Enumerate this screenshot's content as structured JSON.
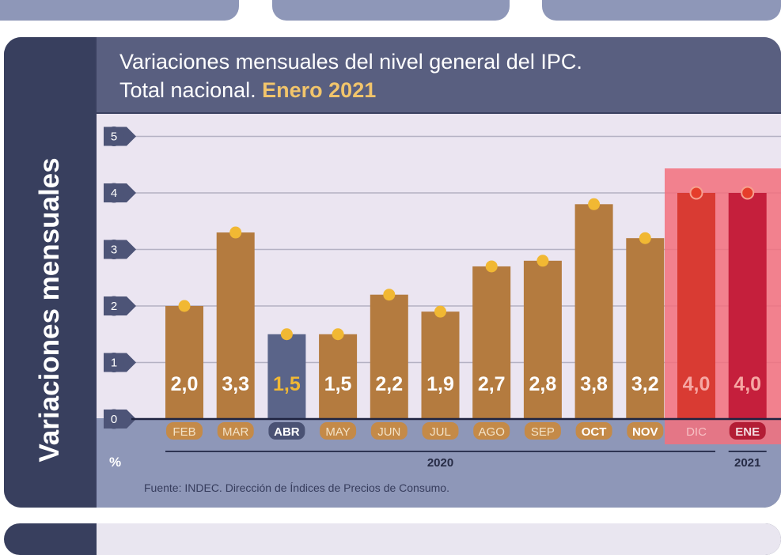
{
  "side_label": "Variaciones mensuales",
  "title_line1": "Variaciones mensuales del nivel general del IPC.",
  "title_line2_prefix": "Total nacional.",
  "title_line2_accent": "Enero 2021",
  "unit_label": "%",
  "source": "Fuente: INDEC. Dirección de Índices de Precios de Consumo.",
  "colors": {
    "bar": "#b47b3f",
    "bar_highlight_april": "#5a6489",
    "bar_dec": "#d93b33",
    "bar_jan": "#c51f3c",
    "dot": "#f1b833",
    "dot_recent": "#e63d2b",
    "highlight_band": "#f3707c",
    "label_highlight": "#f1b833",
    "label_recent": "#f6a7a3"
  },
  "chart_data": {
    "type": "bar",
    "title": "Variaciones mensuales del nivel general del IPC. Total nacional. Enero 2021",
    "categories": [
      "FEB",
      "MAR",
      "ABR",
      "MAY",
      "JUN",
      "JUL",
      "AGO",
      "SEP",
      "OCT",
      "NOV",
      "DIC",
      "ENE"
    ],
    "values": [
      2.0,
      3.3,
      1.5,
      1.5,
      2.2,
      1.9,
      2.7,
      2.8,
      3.8,
      3.2,
      4.0,
      4.0
    ],
    "value_labels": [
      "2,0",
      "3,3",
      "1,5",
      "1,5",
      "2,2",
      "1,9",
      "2,7",
      "2,8",
      "3,8",
      "3,2",
      "4,0",
      "4,0"
    ],
    "groups": [
      {
        "label": "2020",
        "categories": [
          "FEB",
          "MAR",
          "ABR",
          "MAY",
          "JUN",
          "JUL",
          "AGO",
          "SEP",
          "OCT",
          "NOV",
          "DIC"
        ]
      },
      {
        "label": "2021",
        "categories": [
          "ENE"
        ]
      }
    ],
    "highlighted": [
      "ABR"
    ],
    "recent": [
      "DIC",
      "ENE"
    ],
    "ylabel": "%",
    "ylim": [
      0,
      5
    ],
    "yticks": [
      0,
      1,
      2,
      3,
      4,
      5
    ],
    "grid": true
  }
}
